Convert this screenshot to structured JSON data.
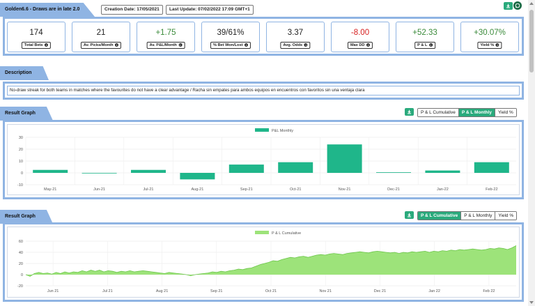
{
  "header": {
    "strategy_title": "Golden6.6 - Draws are in late 2.0",
    "creation_date": "Creation Date: 17/05/2021",
    "last_update": "Last Update: 07/02/2022 17:09 GMT+1",
    "icons": [
      "download-icon",
      "whatsapp-icon"
    ]
  },
  "stats": [
    {
      "value": "174",
      "label": "Total Bets",
      "tone": "neu"
    },
    {
      "value": "21",
      "label": "Av. Picks/Month",
      "tone": "neu"
    },
    {
      "value": "+1.75",
      "label": "Av. P&L/Month",
      "tone": "pos"
    },
    {
      "value": "39/61%",
      "label": "% Bet Won/Lost",
      "tone": "neu"
    },
    {
      "value": "3.37",
      "label": "Avg. Odds",
      "tone": "neu"
    },
    {
      "value": "-8.00",
      "label": "Max DD",
      "tone": "neg"
    },
    {
      "value": "+52.33",
      "label": "P & L",
      "tone": "pos"
    },
    {
      "value": "+30.07%",
      "label": "Yield %",
      "tone": "pos"
    }
  ],
  "description": {
    "title": "Description",
    "text": "No-draw streak for both teams in matches where the favourites do not have a clear advantage / Racha sin empates para ambos equipos en encuentros con favoritos sin una ventaja clara"
  },
  "graphs": [
    {
      "title": "Result Graph",
      "tabs": [
        "P & L Cumulative",
        "P & L Monthly",
        "Yield %"
      ],
      "active_tab": 1,
      "chart_data": {
        "type": "bar",
        "series": [
          {
            "name": "P&L Monthly",
            "values": [
              2.5,
              0,
              2.5,
              -5.5,
              7,
              9,
              24,
              0.5,
              2,
              9
            ]
          }
        ],
        "categories": [
          "May-21",
          "Jun-21",
          "Jul-21",
          "Aug-21",
          "Sep-21",
          "Oct-21",
          "Nov-21",
          "Dec-21",
          "Jan-22",
          "Feb-22"
        ],
        "y_ticks": [
          "30",
          "20",
          "10",
          "0",
          "-10"
        ],
        "ylim": [
          -10,
          30
        ],
        "color": "#1fb68a",
        "grid": true,
        "legend": "top-center"
      }
    },
    {
      "title": "Result Graph",
      "tabs": [
        "P & L Cumulative",
        "P & L Monthly",
        "Yield %"
      ],
      "active_tab": 0,
      "chart_data": {
        "type": "area",
        "series": [
          {
            "name": "P & L Cumulative",
            "values": [
              0,
              -3,
              2,
              4,
              2,
              3,
              1,
              4,
              2,
              5,
              3,
              5,
              4,
              7,
              5,
              8,
              6,
              8,
              5,
              7,
              6,
              4,
              6,
              5,
              7,
              5,
              6,
              7,
              6,
              5,
              4,
              3,
              2,
              4,
              3,
              2,
              1,
              0,
              -2,
              0,
              1,
              2,
              3,
              5,
              4,
              6,
              5,
              7,
              8,
              10,
              9,
              11,
              12,
              15,
              18,
              20,
              22,
              25,
              24,
              27,
              29,
              31,
              30,
              32,
              33,
              31,
              33,
              35,
              36,
              35,
              37,
              38,
              37,
              36,
              38,
              39,
              40,
              41,
              40,
              39,
              41,
              42,
              41,
              40,
              39,
              40,
              38,
              40,
              39,
              41,
              40,
              41,
              42,
              40,
              42,
              41,
              43,
              42,
              44,
              43,
              45,
              44,
              45,
              46,
              45,
              44,
              45,
              47,
              46,
              48,
              47,
              45,
              48,
              52
            ]
          }
        ],
        "x_ticks": [
          "Jun 21",
          "Jul 21",
          "Aug 21",
          "Sep 21",
          "Oct 21",
          "Nov 21",
          "Dec 21",
          "Jan 22",
          "Feb 22"
        ],
        "y_ticks": [
          "60",
          "40",
          "20",
          "0",
          "-20"
        ],
        "ylim": [
          -20,
          60
        ],
        "color": "#9de37a",
        "grid": true,
        "legend": "top-center"
      }
    }
  ]
}
